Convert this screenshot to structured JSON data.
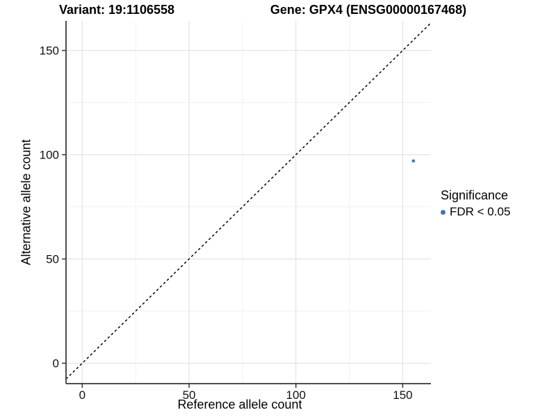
{
  "chart_data": {
    "type": "scatter",
    "titles": {
      "left": "Variant: 19:1106558",
      "right": "Gene: GPX4 (ENSG00000167468)"
    },
    "xlabel": "Reference allele count",
    "ylabel": "Alternative allele count",
    "xticks": [
      0,
      50,
      100,
      150
    ],
    "yticks": [
      0,
      50,
      100,
      150
    ],
    "minor_xticks": [
      25,
      75,
      125
    ],
    "minor_yticks": [
      25,
      75,
      125
    ],
    "xlim": [
      -7.6,
      163.2
    ],
    "ylim": [
      -9.8,
      164.2
    ],
    "grid": "major+minor",
    "reference_line": {
      "type": "identity",
      "linestyle": "dashed",
      "color": "#000000"
    },
    "series": [
      {
        "name": "FDR < 0.05",
        "color": "#4177B0",
        "marker": "circle",
        "points": [
          {
            "x": 155,
            "y": 97
          }
        ]
      }
    ],
    "legend": {
      "title": "Significance",
      "position": "right",
      "items": [
        {
          "label": "FDR < 0.05",
          "color": "#4177B0",
          "marker": "circle"
        }
      ]
    },
    "style": {
      "background": "#FFFFFF",
      "grid_major_color": "#E3E3E3",
      "grid_minor_color": "#F1F1F1",
      "axis_color": "#4D4D4D",
      "tick_color": "#333333",
      "text_color": "#000000"
    }
  }
}
